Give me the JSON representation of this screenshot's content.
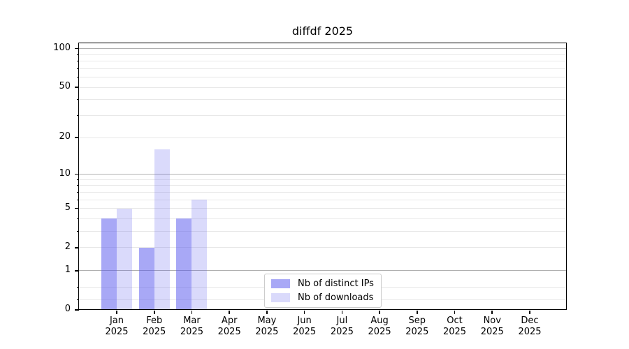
{
  "chart_data": {
    "type": "bar",
    "title": "diffdf 2025",
    "categories": [
      "Jan 2025",
      "Feb 2025",
      "Mar 2025",
      "Apr 2025",
      "May 2025",
      "Jun 2025",
      "Jul 2025",
      "Aug 2025",
      "Sep 2025",
      "Oct 2025",
      "Nov 2025",
      "Dec 2025"
    ],
    "series": [
      {
        "name": "Nb of distinct IPs",
        "color": "#5555ee",
        "alpha": 0.51,
        "values": [
          4,
          2,
          4,
          0,
          0,
          0,
          0,
          0,
          0,
          0,
          0,
          0
        ]
      },
      {
        "name": "Nb of downloads",
        "color": "#5555ee",
        "alpha": 0.22,
        "values": [
          5,
          16,
          6,
          0,
          0,
          0,
          0,
          0,
          0,
          0,
          0,
          0
        ]
      }
    ],
    "yscale": "log10(1+v)",
    "ylim": [
      0,
      110
    ],
    "yticks": [
      100,
      50,
      20,
      10,
      5,
      2,
      1,
      0
    ],
    "grid": {
      "major": [
        1,
        10,
        100
      ],
      "minor": [
        0.2,
        0.5,
        2,
        3,
        4,
        5,
        6,
        7,
        8,
        9,
        20,
        30,
        40,
        50,
        60,
        70,
        80,
        90
      ],
      "major_color": "#b0b0b0",
      "minor_color": "#e8e8e8"
    },
    "legend_position": "bottom-center",
    "background_color": "#ffffff",
    "text_color": "#000000"
  }
}
